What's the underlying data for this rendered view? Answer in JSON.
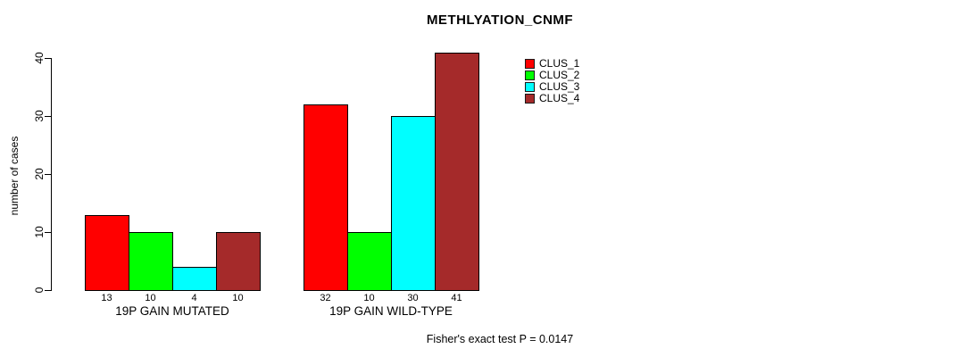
{
  "title": "METHLYATION_CNMF",
  "ylabel": "number of cases",
  "footer": "Fisher's exact test P = 0.0147",
  "chart_data": {
    "type": "bar",
    "title": "METHLYATION_CNMF",
    "xlabel": "",
    "ylabel": "number of cases",
    "categories": [
      "19P GAIN MUTATED",
      "19P GAIN WILD-TYPE"
    ],
    "series": [
      {
        "name": "CLUS_1",
        "color": "#ff0000",
        "values": [
          13,
          32
        ]
      },
      {
        "name": "CLUS_2",
        "color": "#00ff00",
        "values": [
          10,
          10
        ]
      },
      {
        "name": "CLUS_3",
        "color": "#00ffff",
        "values": [
          4,
          30
        ]
      },
      {
        "name": "CLUS_4",
        "color": "#a52a2a",
        "values": [
          10,
          41
        ]
      }
    ],
    "yticks": [
      0,
      10,
      20,
      30,
      40
    ],
    "ylim": [
      0,
      41
    ],
    "grid": false,
    "bar_value_labels": true,
    "legend_position": "top-right",
    "annotation": "Fisher's exact test P = 0.0147"
  }
}
